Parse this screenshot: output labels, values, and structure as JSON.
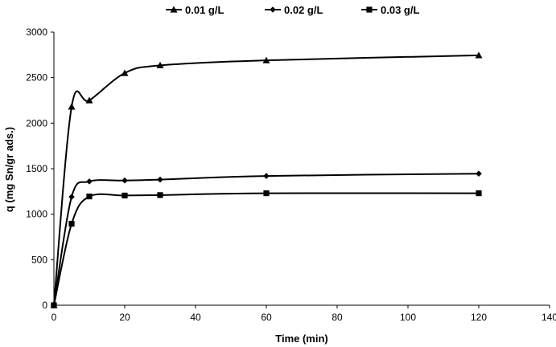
{
  "chart_data": {
    "type": "line",
    "title": "",
    "xlabel": "Time (min)",
    "ylabel": "q (mg Sn/gr ads.)",
    "xlim": [
      0,
      140
    ],
    "ylim": [
      0,
      3000
    ],
    "xticks": [
      0,
      20,
      40,
      60,
      80,
      100,
      120,
      140
    ],
    "yticks": [
      0,
      500,
      1000,
      1500,
      2000,
      2500,
      3000
    ],
    "grid": false,
    "legend_position": "top-center",
    "series": [
      {
        "name": "0.01 g/L",
        "marker": "triangle",
        "color": "#000000",
        "x": [
          0,
          5,
          10,
          20,
          30,
          60,
          120
        ],
        "y": [
          0,
          2180,
          2250,
          2550,
          2635,
          2690,
          2745
        ]
      },
      {
        "name": "0.02 g/L",
        "marker": "diamond",
        "color": "#000000",
        "x": [
          0,
          5,
          10,
          20,
          30,
          60,
          120
        ],
        "y": [
          0,
          1190,
          1360,
          1370,
          1380,
          1420,
          1445
        ]
      },
      {
        "name": "0.03 g/L",
        "marker": "square",
        "color": "#000000",
        "x": [
          0,
          5,
          10,
          20,
          30,
          60,
          120
        ],
        "y": [
          0,
          895,
          1195,
          1205,
          1210,
          1230,
          1230
        ]
      }
    ]
  }
}
